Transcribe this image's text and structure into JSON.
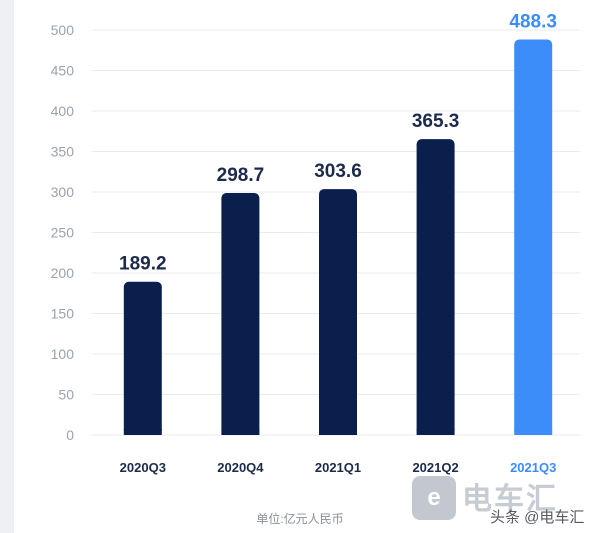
{
  "chart_data": {
    "type": "bar",
    "categories": [
      "2020Q3",
      "2020Q4",
      "2021Q1",
      "2021Q2",
      "2021Q3"
    ],
    "values": [
      189.2,
      298.7,
      303.6,
      365.3,
      488.3
    ],
    "value_labels": [
      "189.2",
      "298.7",
      "303.6",
      "365.3",
      "488.3"
    ],
    "yticks": [
      "0",
      "50",
      "100",
      "150",
      "200",
      "250",
      "300",
      "350",
      "400",
      "450",
      "500"
    ],
    "ylim": [
      0,
      500
    ],
    "grid": true,
    "unit_caption": "单位:亿元人民币",
    "colors": {
      "bar": "#0b1f4d",
      "highlight_bar": "#3c8dfa",
      "value_label": "#1d2a4b",
      "highlight_label": "#3c8dfa",
      "axis_text": "#9aa3ae",
      "grid": "#e9ebee"
    },
    "highlight_index": 4
  },
  "watermark": {
    "badge_glyph": "e",
    "big_text": "电车汇",
    "credit": "头条 @电车汇"
  }
}
